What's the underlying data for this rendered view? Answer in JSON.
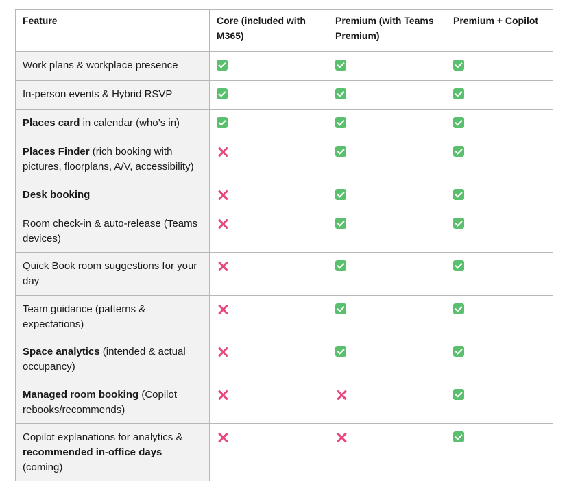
{
  "headers": [
    "Feature",
    "Core (included with M365)",
    "Premium (with Teams Premium)",
    "Premium + Copilot"
  ],
  "rows": [
    {
      "bold": "",
      "text": "Work plans & workplace presence",
      "bold2": "",
      "text2": "",
      "marks": [
        "check",
        "check",
        "check"
      ]
    },
    {
      "bold": "",
      "text": "In-person events & Hybrid RSVP",
      "bold2": "",
      "text2": "",
      "marks": [
        "check",
        "check",
        "check"
      ]
    },
    {
      "bold": "Places card",
      "text": " in calendar (who’s in)",
      "bold2": "",
      "text2": "",
      "marks": [
        "check",
        "check",
        "check"
      ]
    },
    {
      "bold": "Places Finder",
      "text": " (rich booking with pictures, floorplans, A/V, accessibility)",
      "bold2": "",
      "text2": "",
      "marks": [
        "cross",
        "check",
        "check"
      ]
    },
    {
      "bold": "Desk booking",
      "text": "",
      "bold2": "",
      "text2": "",
      "marks": [
        "cross",
        "check",
        "check"
      ]
    },
    {
      "bold": "",
      "text": "Room check-in & auto-release (Teams devices)",
      "bold2": "",
      "text2": "",
      "marks": [
        "cross",
        "check",
        "check"
      ]
    },
    {
      "bold": "",
      "text": "Quick Book room suggestions for your day",
      "bold2": "",
      "text2": "",
      "marks": [
        "cross",
        "check",
        "check"
      ]
    },
    {
      "bold": "",
      "text": "Team guidance (patterns & expectations)",
      "bold2": "",
      "text2": "",
      "marks": [
        "cross",
        "check",
        "check"
      ]
    },
    {
      "bold": "Space analytics",
      "text": " (intended & actual occupancy)",
      "bold2": "",
      "text2": "",
      "marks": [
        "cross",
        "check",
        "check"
      ]
    },
    {
      "bold": "Managed room booking",
      "text": " (Copilot rebooks/recommends)",
      "bold2": "",
      "text2": "",
      "marks": [
        "cross",
        "cross",
        "check"
      ]
    },
    {
      "bold": "",
      "text": "Copilot explanations for analytics & ",
      "bold2": "recommended in-office days",
      "text2": " (coming)",
      "marks": [
        "cross",
        "cross",
        "check"
      ]
    }
  ],
  "row_heights": [
    42,
    42,
    42,
    63,
    42,
    62,
    63,
    62,
    63,
    62,
    84
  ],
  "header_height": 62,
  "colors": {
    "check": "#5ac06d",
    "cross": "#e8467c",
    "feature_bg": "#f2f2f2",
    "border": "#b7b7b7"
  }
}
